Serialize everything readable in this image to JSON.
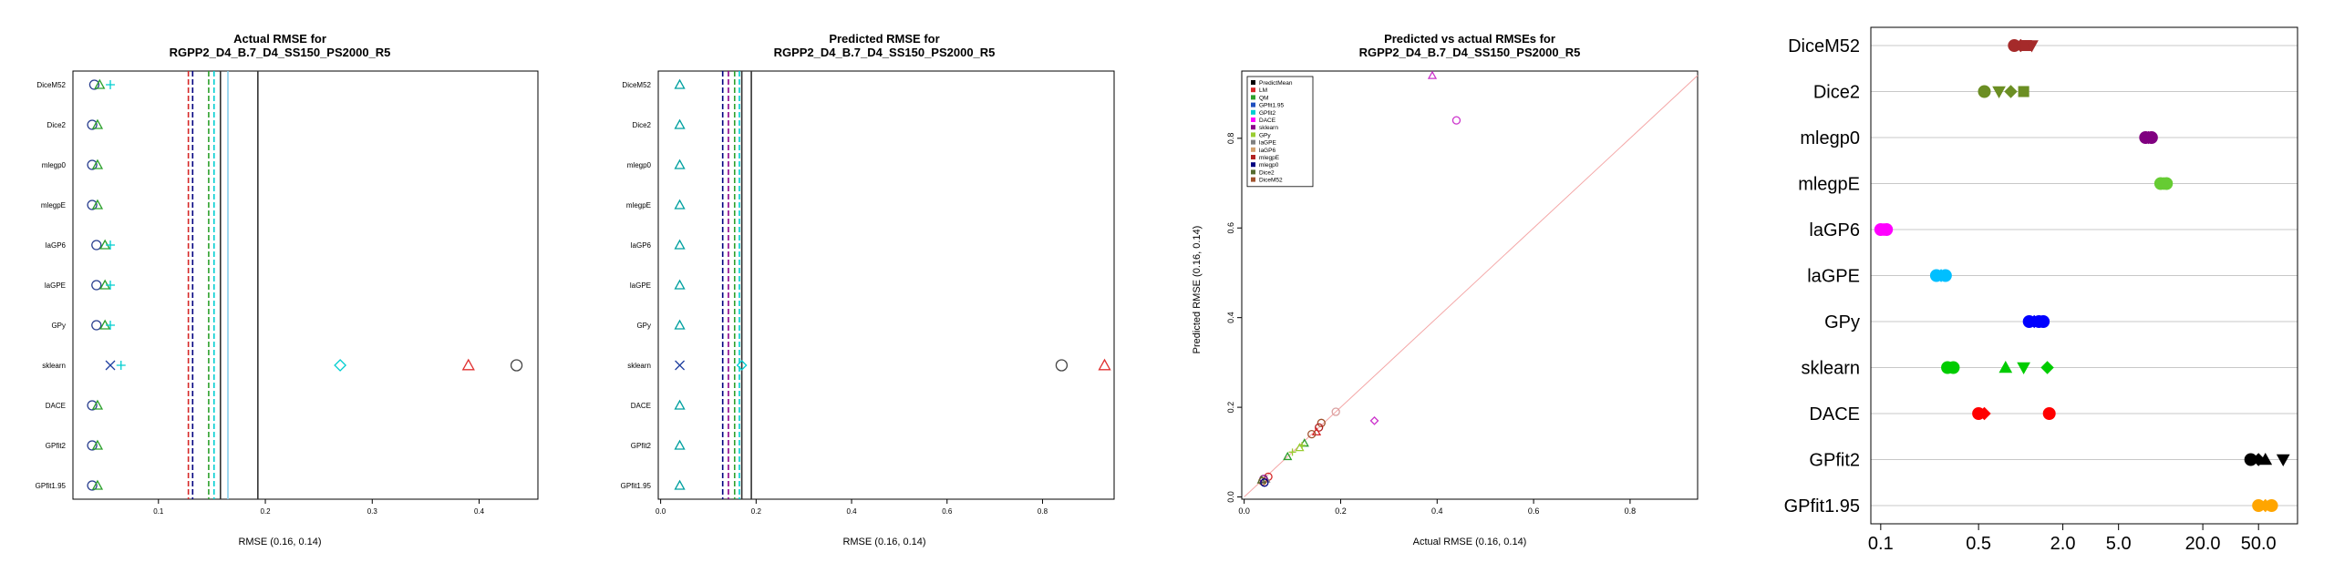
{
  "panels": [
    {
      "title_lines": [
        "Actual RMSE for",
        "RGPP2_D4_B.7_D4_SS150_PS2000_R5"
      ],
      "xlabel": "RMSE (0.16, 0.14)"
    },
    {
      "title_lines": [
        "Predicted RMSE for",
        "RGPP2_D4_B.7_D4_SS150_PS2000_R5"
      ],
      "xlabel": "RMSE (0.16, 0.14)"
    },
    {
      "title_lines": [
        "Predicted vs actual RMSEs for",
        "RGPP2_D4_B.7_D4_SS150_PS2000_R5"
      ],
      "xlabel": "Actual RMSE (0.16, 0.14)",
      "ylabel": "Predicted RMSE (0.16, 0.14)"
    },
    {
      "title_lines": []
    }
  ],
  "chart_data": [
    {
      "type": "scatter",
      "title": "Actual RMSE for RGPP2_D4_B.7_D4_SS150_PS2000_R5",
      "xlabel": "RMSE (0.16, 0.14)",
      "categories": [
        "DiceM52",
        "Dice2",
        "mlegp0",
        "mlegpE",
        "laGP6",
        "laGPE",
        "GPy",
        "sklearn",
        "DACE",
        "GPfit2",
        "GPfit1.95"
      ],
      "x_ticks": [
        "0.1",
        "0.2",
        "0.3",
        "0.4"
      ],
      "xlim": [
        0.02,
        0.455
      ],
      "vlines": [
        {
          "x": 0.128,
          "color": "#d62728",
          "style": "dashed"
        },
        {
          "x": 0.132,
          "color": "#000080",
          "style": "dashed"
        },
        {
          "x": 0.147,
          "color": "#2ca02c",
          "style": "dashed"
        },
        {
          "x": 0.152,
          "color": "#00ced1",
          "style": "dashed"
        },
        {
          "x": 0.158,
          "color": "#333333",
          "style": "solid"
        },
        {
          "x": 0.165,
          "color": "#87ceeb",
          "style": "solid"
        },
        {
          "x": 0.193,
          "color": "#333333",
          "style": "solid"
        }
      ],
      "points": [
        {
          "row": "DiceM52",
          "x": 0.04,
          "marker": "circle"
        },
        {
          "row": "DiceM52",
          "x": 0.045,
          "marker": "triangle"
        },
        {
          "row": "DiceM52",
          "x": 0.055,
          "marker": "plus"
        },
        {
          "row": "Dice2",
          "x": 0.038,
          "marker": "circle"
        },
        {
          "row": "Dice2",
          "x": 0.043,
          "marker": "triangle"
        },
        {
          "row": "mlegp0",
          "x": 0.038,
          "marker": "circle"
        },
        {
          "row": "mlegp0",
          "x": 0.043,
          "marker": "triangle"
        },
        {
          "row": "mlegpE",
          "x": 0.038,
          "marker": "circle"
        },
        {
          "row": "mlegpE",
          "x": 0.043,
          "marker": "triangle"
        },
        {
          "row": "laGP6",
          "x": 0.042,
          "marker": "circle"
        },
        {
          "row": "laGP6",
          "x": 0.05,
          "marker": "triangle"
        },
        {
          "row": "laGP6",
          "x": 0.055,
          "marker": "plus"
        },
        {
          "row": "laGPE",
          "x": 0.042,
          "marker": "circle"
        },
        {
          "row": "laGPE",
          "x": 0.05,
          "marker": "triangle"
        },
        {
          "row": "laGPE",
          "x": 0.055,
          "marker": "plus"
        },
        {
          "row": "GPy",
          "x": 0.042,
          "marker": "circle"
        },
        {
          "row": "GPy",
          "x": 0.05,
          "marker": "triangle"
        },
        {
          "row": "GPy",
          "x": 0.055,
          "marker": "plus"
        },
        {
          "row": "sklearn",
          "x": 0.055,
          "marker": "cross"
        },
        {
          "row": "sklearn",
          "x": 0.065,
          "marker": "plus"
        },
        {
          "row": "sklearn",
          "x": 0.27,
          "marker": "diamond"
        },
        {
          "row": "sklearn",
          "x": 0.39,
          "marker": "triangle"
        },
        {
          "row": "sklearn",
          "x": 0.435,
          "marker": "circle"
        },
        {
          "row": "DACE",
          "x": 0.038,
          "marker": "circle"
        },
        {
          "row": "DACE",
          "x": 0.043,
          "marker": "triangle"
        },
        {
          "row": "GPfit2",
          "x": 0.038,
          "marker": "circle"
        },
        {
          "row": "GPfit2",
          "x": 0.043,
          "marker": "triangle"
        },
        {
          "row": "GPfit1.95",
          "x": 0.038,
          "marker": "circle"
        },
        {
          "row": "GPfit1.95",
          "x": 0.043,
          "marker": "triangle"
        }
      ]
    },
    {
      "type": "scatter",
      "title": "Predicted RMSE for RGPP2_D4_B.7_D4_SS150_PS2000_R5",
      "xlabel": "RMSE (0.16, 0.14)",
      "categories": [
        "DiceM52",
        "Dice2",
        "mlegp0",
        "mlegpE",
        "laGP6",
        "laGPE",
        "GPy",
        "sklearn",
        "DACE",
        "GPfit2",
        "GPfit1.95"
      ],
      "x_ticks": [
        "0.0",
        "0.2",
        "0.4",
        "0.6",
        "0.8"
      ],
      "xlim": [
        -0.005,
        0.95
      ],
      "vlines": [
        {
          "x": 0.13,
          "color": "#000080",
          "style": "dashed"
        },
        {
          "x": 0.142,
          "color": "#8b008b",
          "style": "dashed"
        },
        {
          "x": 0.155,
          "color": "#2ca02c",
          "style": "dashed"
        },
        {
          "x": 0.165,
          "color": "#00ced1",
          "style": "dashed"
        },
        {
          "x": 0.17,
          "color": "#333333",
          "style": "solid"
        },
        {
          "x": 0.19,
          "color": "#333333",
          "style": "solid"
        }
      ],
      "points": [
        {
          "row": "DiceM52",
          "x": 0.04,
          "marker": "triangle"
        },
        {
          "row": "Dice2",
          "x": 0.04,
          "marker": "triangle"
        },
        {
          "row": "mlegp0",
          "x": 0.04,
          "marker": "triangle"
        },
        {
          "row": "mlegpE",
          "x": 0.04,
          "marker": "triangle"
        },
        {
          "row": "laGP6",
          "x": 0.04,
          "marker": "triangle"
        },
        {
          "row": "laGPE",
          "x": 0.04,
          "marker": "triangle"
        },
        {
          "row": "GPy",
          "x": 0.04,
          "marker": "triangle"
        },
        {
          "row": "sklearn",
          "x": 0.04,
          "marker": "cross"
        },
        {
          "row": "sklearn",
          "x": 0.17,
          "marker": "diamond"
        },
        {
          "row": "sklearn",
          "x": 0.84,
          "marker": "circle"
        },
        {
          "row": "sklearn",
          "x": 0.93,
          "marker": "triangle"
        },
        {
          "row": "DACE",
          "x": 0.04,
          "marker": "triangle"
        },
        {
          "row": "GPfit2",
          "x": 0.04,
          "marker": "triangle"
        },
        {
          "row": "GPfit1.95",
          "x": 0.04,
          "marker": "triangle"
        }
      ]
    },
    {
      "type": "scatter",
      "title": "Predicted vs actual RMSEs for RGPP2_D4_B.7_D4_SS150_PS2000_R5",
      "xlabel": "Actual RMSE (0.16, 0.14)",
      "ylabel": "Predicted RMSE (0.16, 0.14)",
      "x_ticks": [
        "0.0",
        "0.2",
        "0.4",
        "0.6",
        "0.8"
      ],
      "y_ticks": [
        "0.0",
        "0.2",
        "0.4",
        "0.6",
        "0.8"
      ],
      "xlim": [
        -0.005,
        0.94
      ],
      "ylim": [
        -0.005,
        0.95
      ],
      "diagonal": true,
      "legend": {
        "position": "top-left",
        "entries": [
          {
            "name": "PredictMean",
            "color": "#000000"
          },
          {
            "name": "LM",
            "color": "#d62728"
          },
          {
            "name": "QM",
            "color": "#2ca02c"
          },
          {
            "name": "GPfit1.95",
            "color": "#1f4fbf"
          },
          {
            "name": "GPfit2",
            "color": "#00ced1"
          },
          {
            "name": "DACE",
            "color": "#ff00ff"
          },
          {
            "name": "sklearn",
            "color": "#8b008b"
          },
          {
            "name": "GPy",
            "color": "#9acd32"
          },
          {
            "name": "laGPE",
            "color": "#808080"
          },
          {
            "name": "laGP6",
            "color": "#d2a06e"
          },
          {
            "name": "mlegpE",
            "color": "#b22222"
          },
          {
            "name": "mlegp0",
            "color": "#000080"
          },
          {
            "name": "Dice2",
            "color": "#556b2f"
          },
          {
            "name": "DiceM52",
            "color": "#a0522d"
          }
        ]
      },
      "points": [
        {
          "x": 0.39,
          "y": 0.94,
          "marker": "triangle",
          "color": "#cc33cc"
        },
        {
          "x": 0.44,
          "y": 0.84,
          "marker": "circle",
          "color": "#cc33cc"
        },
        {
          "x": 0.27,
          "y": 0.17,
          "marker": "diamond",
          "color": "#cc33cc"
        },
        {
          "x": 0.19,
          "y": 0.19,
          "marker": "circle",
          "color": "#d9a0a0"
        },
        {
          "x": 0.16,
          "y": 0.165,
          "marker": "circle",
          "color": "#a0522d"
        },
        {
          "x": 0.155,
          "y": 0.155,
          "marker": "circle",
          "color": "#b22222"
        },
        {
          "x": 0.15,
          "y": 0.145,
          "marker": "triangle",
          "color": "#d62728"
        },
        {
          "x": 0.14,
          "y": 0.14,
          "marker": "circle",
          "color": "#a0522d"
        },
        {
          "x": 0.125,
          "y": 0.12,
          "marker": "triangle",
          "color": "#2ca02c"
        },
        {
          "x": 0.12,
          "y": 0.115,
          "marker": "plus",
          "color": "#9acd32"
        },
        {
          "x": 0.115,
          "y": 0.11,
          "marker": "triangle",
          "color": "#9acd32"
        },
        {
          "x": 0.1,
          "y": 0.1,
          "marker": "plus",
          "color": "#9acd32"
        },
        {
          "x": 0.09,
          "y": 0.09,
          "marker": "triangle",
          "color": "#2ca02c"
        },
        {
          "x": 0.05,
          "y": 0.045,
          "marker": "circle",
          "color": "#d62728"
        },
        {
          "x": 0.045,
          "y": 0.04,
          "marker": "triangle",
          "color": "#808080"
        },
        {
          "x": 0.04,
          "y": 0.04,
          "marker": "circle",
          "color": "#8b008b"
        },
        {
          "x": 0.038,
          "y": 0.035,
          "marker": "circle",
          "color": "#a0522d"
        },
        {
          "x": 0.036,
          "y": 0.038,
          "marker": "triangle",
          "color": "#556b2f"
        },
        {
          "x": 0.042,
          "y": 0.032,
          "marker": "circle",
          "color": "#000080"
        }
      ]
    },
    {
      "type": "scatter",
      "title": "",
      "x_scale": "log",
      "x_ticks": [
        "0.1",
        "0.5",
        "2.0",
        "5.0",
        "20.0",
        "50.0"
      ],
      "x_tick_values": [
        0.1,
        0.5,
        2.0,
        5.0,
        20.0,
        50.0
      ],
      "xlim": [
        0.085,
        95
      ],
      "categories": [
        "DiceM52",
        "Dice2",
        "mlegp0",
        "mlegpE",
        "laGP6",
        "laGPE",
        "GPy",
        "sklearn",
        "DACE",
        "GPfit2",
        "GPfit1.95"
      ],
      "grid": "horizontal",
      "points": [
        {
          "row": "DiceM52",
          "x": 0.9,
          "marker": "circle",
          "color": "#a52a2a"
        },
        {
          "row": "DiceM52",
          "x": 1.0,
          "marker": "diamond",
          "color": "#a52a2a"
        },
        {
          "row": "DiceM52",
          "x": 1.1,
          "marker": "square",
          "color": "#a52a2a"
        },
        {
          "row": "DiceM52",
          "x": 1.2,
          "marker": "triangle-down",
          "color": "#a52a2a"
        },
        {
          "row": "Dice2",
          "x": 0.55,
          "marker": "circle",
          "color": "#6b8e23"
        },
        {
          "row": "Dice2",
          "x": 0.7,
          "marker": "triangle-down",
          "color": "#6b8e23"
        },
        {
          "row": "Dice2",
          "x": 0.85,
          "marker": "diamond",
          "color": "#6b8e23"
        },
        {
          "row": "Dice2",
          "x": 1.05,
          "marker": "square",
          "color": "#6b8e23"
        },
        {
          "row": "mlegp0",
          "x": 7.8,
          "marker": "circle",
          "color": "#800080"
        },
        {
          "row": "mlegp0",
          "x": 8.2,
          "marker": "diamond",
          "color": "#800080"
        },
        {
          "row": "mlegp0",
          "x": 8.6,
          "marker": "circle",
          "color": "#800080"
        },
        {
          "row": "mlegpE",
          "x": 10.0,
          "marker": "circle",
          "color": "#66cc33"
        },
        {
          "row": "mlegpE",
          "x": 10.5,
          "marker": "diamond",
          "color": "#66cc33"
        },
        {
          "row": "mlegpE",
          "x": 11.0,
          "marker": "circle",
          "color": "#66cc33"
        },
        {
          "row": "laGP6",
          "x": 0.1,
          "marker": "circle",
          "color": "#ff00ff"
        },
        {
          "row": "laGP6",
          "x": 0.105,
          "marker": "diamond",
          "color": "#ff00ff"
        },
        {
          "row": "laGP6",
          "x": 0.11,
          "marker": "circle",
          "color": "#ff00ff"
        },
        {
          "row": "laGPE",
          "x": 0.25,
          "marker": "circle",
          "color": "#00bfff"
        },
        {
          "row": "laGPE",
          "x": 0.27,
          "marker": "diamond",
          "color": "#00bfff"
        },
        {
          "row": "laGPE",
          "x": 0.29,
          "marker": "circle",
          "color": "#00bfff"
        },
        {
          "row": "GPy",
          "x": 1.15,
          "marker": "circle",
          "color": "#0000ff"
        },
        {
          "row": "GPy",
          "x": 1.25,
          "marker": "diamond",
          "color": "#0000ff"
        },
        {
          "row": "GPy",
          "x": 1.35,
          "marker": "circle",
          "color": "#0000ff"
        },
        {
          "row": "GPy",
          "x": 1.45,
          "marker": "circle",
          "color": "#0000ff"
        },
        {
          "row": "sklearn",
          "x": 0.3,
          "marker": "circle",
          "color": "#00cc00"
        },
        {
          "row": "sklearn",
          "x": 0.33,
          "marker": "circle",
          "color": "#00cc00"
        },
        {
          "row": "sklearn",
          "x": 0.78,
          "marker": "triangle",
          "color": "#00cc00"
        },
        {
          "row": "sklearn",
          "x": 1.05,
          "marker": "triangle-down",
          "color": "#00cc00"
        },
        {
          "row": "sklearn",
          "x": 1.55,
          "marker": "diamond",
          "color": "#00cc00"
        },
        {
          "row": "DACE",
          "x": 0.5,
          "marker": "circle",
          "color": "#ff0000"
        },
        {
          "row": "DACE",
          "x": 0.55,
          "marker": "diamond",
          "color": "#ff0000"
        },
        {
          "row": "DACE",
          "x": 1.6,
          "marker": "circle",
          "color": "#ff0000"
        },
        {
          "row": "GPfit2",
          "x": 44,
          "marker": "circle",
          "color": "#000000"
        },
        {
          "row": "GPfit2",
          "x": 50,
          "marker": "diamond",
          "color": "#000000"
        },
        {
          "row": "GPfit2",
          "x": 56,
          "marker": "triangle",
          "color": "#000000"
        },
        {
          "row": "GPfit2",
          "x": 75,
          "marker": "triangle-down",
          "color": "#000000"
        },
        {
          "row": "GPfit1.95",
          "x": 50,
          "marker": "circle",
          "color": "#ffa500"
        },
        {
          "row": "GPfit1.95",
          "x": 56,
          "marker": "diamond",
          "color": "#ffa500"
        },
        {
          "row": "GPfit1.95",
          "x": 62,
          "marker": "circle",
          "color": "#ffa500"
        }
      ]
    }
  ]
}
